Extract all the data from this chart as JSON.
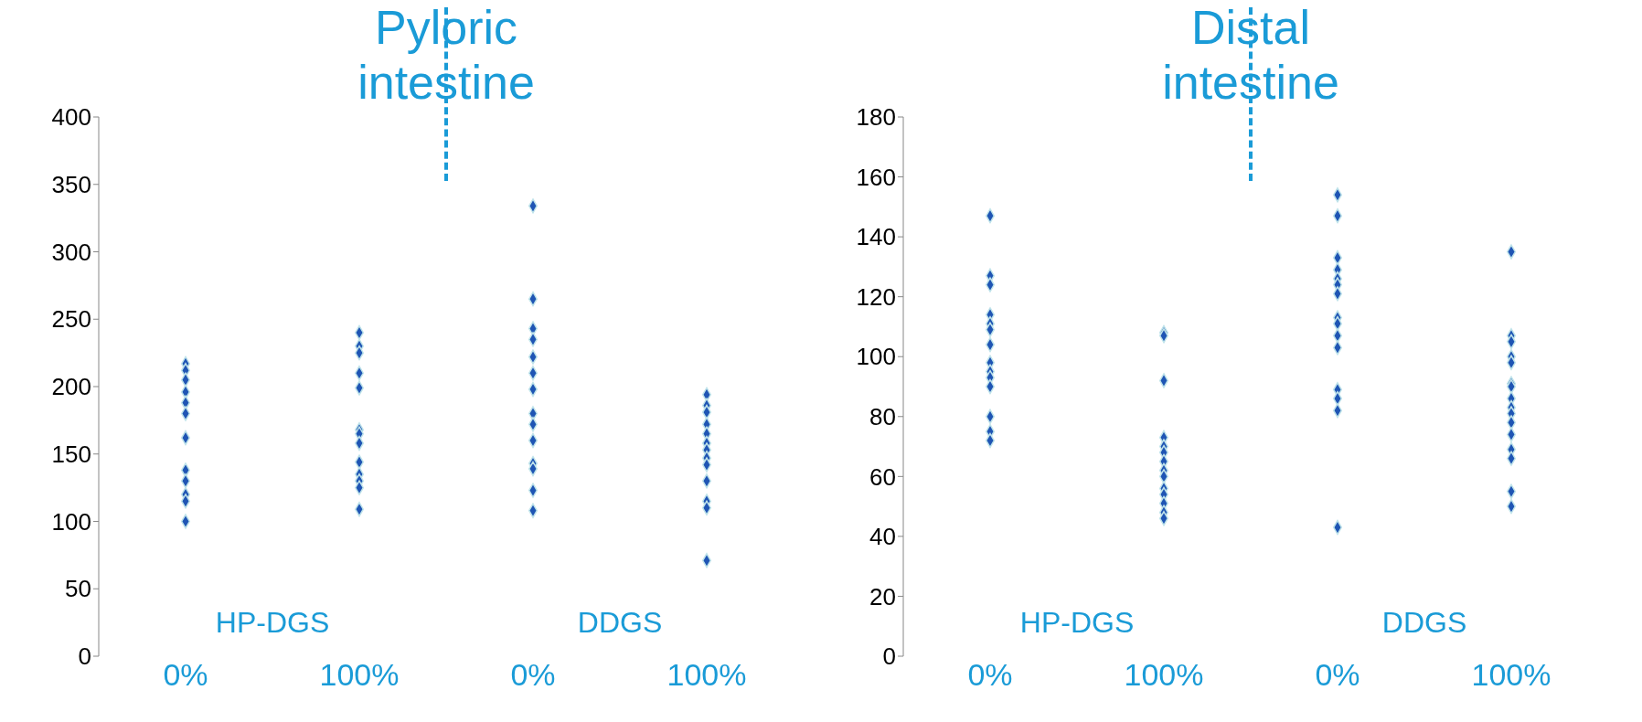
{
  "chart_data": [
    {
      "type": "scatter",
      "title": "Pyloric intestine",
      "categories": [
        "0%",
        "100%",
        "0%",
        "100%"
      ],
      "series": [
        {
          "color": "#1f55b4",
          "values": [
            217,
            240,
            334,
            194
          ]
        },
        {
          "color": "#1f55b4",
          "values": [
            212,
            230,
            265,
            186
          ]
        },
        {
          "color": "#1f55b4",
          "values": [
            205,
            225,
            243,
            181
          ]
        },
        {
          "color": "#1f55b4",
          "values": [
            196,
            210,
            235,
            172
          ]
        },
        {
          "color": "#1f55b4",
          "values": [
            188,
            199,
            222,
            165
          ]
        },
        {
          "color": "#1f55b4",
          "values": [
            180,
            168,
            210,
            158
          ]
        },
        {
          "color": "#1f55b4",
          "values": [
            162,
            165,
            198,
            153
          ]
        },
        {
          "color": "#1f55b4",
          "values": [
            138,
            158,
            180,
            147
          ]
        },
        {
          "color": "#1f55b4",
          "values": [
            130,
            144,
            172,
            142
          ]
        },
        {
          "color": "#1f55b4",
          "values": [
            120,
            135,
            160,
            130
          ]
        },
        {
          "color": "#1f55b4",
          "values": [
            115,
            130,
            143,
            115
          ]
        },
        {
          "color": "#1f55b4",
          "values": [
            100,
            125,
            139,
            110
          ]
        },
        {
          "color": "#1f55b4",
          "values": [
            null,
            109,
            123,
            71
          ]
        },
        {
          "color": "#1f55b4",
          "values": [
            null,
            null,
            108,
            null
          ]
        }
      ],
      "ylim": [
        0,
        400
      ],
      "yticks": [
        0,
        50,
        100,
        150,
        200,
        250,
        300,
        350,
        400
      ],
      "annotations": [
        "HP-DGS",
        "DDGS"
      ],
      "marker": "diamond",
      "grid": false,
      "legend": false
    },
    {
      "type": "scatter",
      "title": "Distal intestine",
      "categories": [
        "0%",
        "100%",
        "0%",
        "100%"
      ],
      "series": [
        {
          "color": "#1f55b4",
          "values": [
            147,
            108,
            154,
            135
          ]
        },
        {
          "color": "#1f55b4",
          "values": [
            127,
            107,
            147,
            107
          ]
        },
        {
          "color": "#1f55b4",
          "values": [
            124,
            92,
            133,
            105
          ]
        },
        {
          "color": "#1f55b4",
          "values": [
            114,
            73,
            129,
            100
          ]
        },
        {
          "color": "#1f55b4",
          "values": [
            111,
            70,
            126,
            98
          ]
        },
        {
          "color": "#1f55b4",
          "values": [
            109,
            68,
            124,
            91
          ]
        },
        {
          "color": "#1f55b4",
          "values": [
            104,
            65,
            121,
            90
          ]
        },
        {
          "color": "#1f55b4",
          "values": [
            98,
            62,
            113,
            86
          ]
        },
        {
          "color": "#1f55b4",
          "values": [
            95,
            60,
            111,
            83
          ]
        },
        {
          "color": "#1f55b4",
          "values": [
            93,
            56,
            107,
            81
          ]
        },
        {
          "color": "#1f55b4",
          "values": [
            90,
            54,
            103,
            78
          ]
        },
        {
          "color": "#1f55b4",
          "values": [
            80,
            51,
            89,
            74
          ]
        },
        {
          "color": "#1f55b4",
          "values": [
            75,
            48,
            86,
            69
          ]
        },
        {
          "color": "#1f55b4",
          "values": [
            72,
            46,
            82,
            66
          ]
        },
        {
          "color": "#1f55b4",
          "values": [
            null,
            null,
            43,
            55
          ]
        },
        {
          "color": "#1f55b4",
          "values": [
            null,
            null,
            null,
            50
          ]
        }
      ],
      "ylim": [
        0,
        180
      ],
      "yticks": [
        0,
        20,
        40,
        60,
        80,
        100,
        120,
        140,
        160,
        180
      ],
      "annotations": [
        "HP-DGS",
        "DDGS"
      ],
      "marker": "diamond",
      "grid": false,
      "legend": false
    }
  ]
}
